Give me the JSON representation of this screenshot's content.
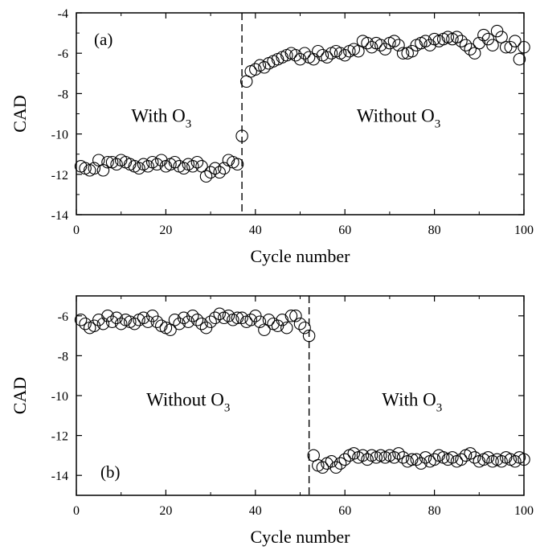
{
  "chart_data": [
    {
      "type": "scatter",
      "panel_label": "(a)",
      "xlabel": "Cycle number",
      "ylabel": "CAD",
      "xlim": [
        0,
        100
      ],
      "ylim": [
        -14,
        -4
      ],
      "xticks": [
        0,
        20,
        40,
        60,
        80,
        100
      ],
      "yticks": [
        -4,
        -6,
        -8,
        -10,
        -12,
        -14
      ],
      "divider_x": 37,
      "annotations": [
        {
          "base": "With O",
          "sub": "3",
          "x": 19,
          "y": -9.4
        },
        {
          "base": "Without O",
          "sub": "3",
          "x": 72,
          "y": -9.4
        }
      ],
      "series": [
        {
          "marker": "open-circle",
          "x": [
            1,
            2,
            3,
            4,
            5,
            6,
            7,
            8,
            9,
            10,
            11,
            12,
            13,
            14,
            15,
            16,
            17,
            18,
            19,
            20,
            21,
            22,
            23,
            24,
            25,
            26,
            27,
            28,
            29,
            30,
            31,
            32,
            33,
            34,
            35,
            36,
            37,
            38,
            39,
            40,
            41,
            42,
            43,
            44,
            45,
            46,
            47,
            48,
            49,
            50,
            51,
            52,
            53,
            54,
            55,
            56,
            57,
            58,
            59,
            60,
            61,
            62,
            63,
            64,
            65,
            66,
            67,
            68,
            69,
            70,
            71,
            72,
            73,
            74,
            75,
            76,
            77,
            78,
            79,
            80,
            81,
            82,
            83,
            84,
            85,
            86,
            87,
            88,
            89,
            90,
            91,
            92,
            93,
            94,
            95,
            96,
            97,
            98,
            99,
            100
          ],
          "y": [
            -11.6,
            -11.7,
            -11.8,
            -11.7,
            -11.3,
            -11.8,
            -11.4,
            -11.4,
            -11.5,
            -11.3,
            -11.4,
            -11.5,
            -11.6,
            -11.7,
            -11.5,
            -11.6,
            -11.4,
            -11.5,
            -11.3,
            -11.6,
            -11.5,
            -11.4,
            -11.6,
            -11.7,
            -11.5,
            -11.6,
            -11.4,
            -11.6,
            -12.1,
            -11.9,
            -11.7,
            -11.9,
            -11.7,
            -11.3,
            -11.4,
            -11.5,
            -10.1,
            -7.4,
            -6.9,
            -6.8,
            -6.6,
            -6.7,
            -6.5,
            -6.4,
            -6.3,
            -6.2,
            -6.1,
            -6.0,
            -6.1,
            -6.3,
            -6.0,
            -6.2,
            -6.3,
            -5.9,
            -6.1,
            -6.2,
            -6.0,
            -5.9,
            -6.0,
            -6.1,
            -5.9,
            -5.8,
            -5.9,
            -5.4,
            -5.5,
            -5.7,
            -5.5,
            -5.6,
            -5.8,
            -5.5,
            -5.4,
            -5.6,
            -6.0,
            -6.0,
            -5.9,
            -5.6,
            -5.5,
            -5.4,
            -5.6,
            -5.3,
            -5.4,
            -5.3,
            -5.2,
            -5.3,
            -5.2,
            -5.4,
            -5.6,
            -5.8,
            -6.0,
            -5.5,
            -5.1,
            -5.3,
            -5.6,
            -4.9,
            -5.2,
            -5.7,
            -5.7,
            -5.4,
            -6.3,
            -5.7
          ]
        }
      ]
    },
    {
      "type": "scatter",
      "panel_label": "(b)",
      "xlabel": "Cycle number",
      "ylabel": "CAD",
      "xlim": [
        0,
        100
      ],
      "ylim": [
        -15,
        -5
      ],
      "xticks": [
        0,
        20,
        40,
        60,
        80,
        100
      ],
      "yticks": [
        -6,
        -8,
        -10,
        -12,
        -14
      ],
      "divider_x": 52,
      "annotations": [
        {
          "base": "Without O",
          "sub": "3",
          "x": 25,
          "y": -10.5
        },
        {
          "base": "With O",
          "sub": "3",
          "x": 75,
          "y": -10.5
        }
      ],
      "series": [
        {
          "marker": "open-circle",
          "x": [
            1,
            2,
            3,
            4,
            5,
            6,
            7,
            8,
            9,
            10,
            11,
            12,
            13,
            14,
            15,
            16,
            17,
            18,
            19,
            20,
            21,
            22,
            23,
            24,
            25,
            26,
            27,
            28,
            29,
            30,
            31,
            32,
            33,
            34,
            35,
            36,
            37,
            38,
            39,
            40,
            41,
            42,
            43,
            44,
            45,
            46,
            47,
            48,
            49,
            50,
            51,
            52,
            53,
            54,
            55,
            56,
            57,
            58,
            59,
            60,
            61,
            62,
            63,
            64,
            65,
            66,
            67,
            68,
            69,
            70,
            71,
            72,
            73,
            74,
            75,
            76,
            77,
            78,
            79,
            80,
            81,
            82,
            83,
            84,
            85,
            86,
            87,
            88,
            89,
            90,
            91,
            92,
            93,
            94,
            95,
            96,
            97,
            98,
            99,
            100
          ],
          "y": [
            -6.2,
            -6.4,
            -6.6,
            -6.5,
            -6.2,
            -6.4,
            -6.0,
            -6.3,
            -6.1,
            -6.4,
            -6.2,
            -6.3,
            -6.4,
            -6.2,
            -6.1,
            -6.3,
            -6.0,
            -6.3,
            -6.5,
            -6.6,
            -6.7,
            -6.2,
            -6.4,
            -6.1,
            -6.3,
            -6.0,
            -6.2,
            -6.4,
            -6.6,
            -6.3,
            -6.1,
            -5.9,
            -6.1,
            -6.0,
            -6.2,
            -6.1,
            -6.1,
            -6.3,
            -6.2,
            -6.0,
            -6.3,
            -6.7,
            -6.2,
            -6.4,
            -6.5,
            -6.2,
            -6.6,
            -6.0,
            -6.0,
            -6.4,
            -6.6,
            -7.0,
            -13.0,
            -13.5,
            -13.6,
            -13.4,
            -13.3,
            -13.6,
            -13.4,
            -13.2,
            -13.0,
            -12.9,
            -13.1,
            -13.0,
            -13.2,
            -13.0,
            -13.1,
            -13.0,
            -13.1,
            -13.0,
            -13.1,
            -12.9,
            -13.1,
            -13.3,
            -13.2,
            -13.2,
            -13.4,
            -13.1,
            -13.3,
            -13.2,
            -13.0,
            -13.1,
            -13.2,
            -13.1,
            -13.3,
            -13.2,
            -13.0,
            -12.9,
            -13.1,
            -13.3,
            -13.2,
            -13.1,
            -13.3,
            -13.2,
            -13.3,
            -13.1,
            -13.2,
            -13.3,
            -13.1,
            -13.2
          ]
        }
      ]
    }
  ]
}
